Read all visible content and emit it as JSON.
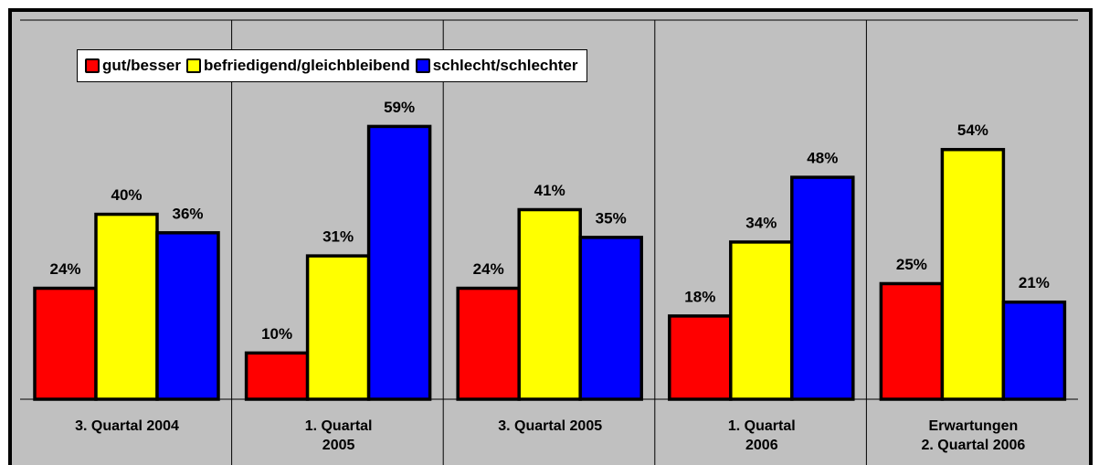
{
  "chart_data": {
    "type": "bar",
    "categories": [
      "3. Quartal 2004",
      "1. Quartal\n2005",
      "3. Quartal 2005",
      "1. Quartal\n2006",
      "Erwartungen\n2. Quartal 2006"
    ],
    "series": [
      {
        "name": "gut/besser",
        "color": "#ff0000",
        "values": [
          24,
          10,
          24,
          18,
          25
        ],
        "value_labels": [
          "24%",
          "10%",
          "24%",
          "18%",
          "25%"
        ]
      },
      {
        "name": "befriedigend/gleichbleibend",
        "color": "#ffff00",
        "values": [
          40,
          31,
          41,
          34,
          54
        ],
        "value_labels": [
          "40%",
          "31%",
          "41%",
          "34%",
          "54%"
        ]
      },
      {
        "name": "schlecht/schlechter",
        "color": "#0000ff",
        "values": [
          36,
          59,
          35,
          48,
          21
        ],
        "value_labels": [
          "36%",
          "59%",
          "35%",
          "48%",
          "21%"
        ]
      }
    ],
    "ylim": [
      0,
      82
    ],
    "legend": "top-left"
  }
}
